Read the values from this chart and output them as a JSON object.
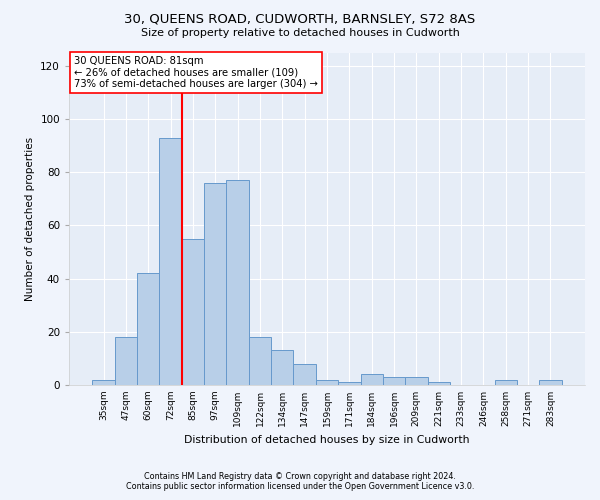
{
  "title": "30, QUEENS ROAD, CUDWORTH, BARNSLEY, S72 8AS",
  "subtitle": "Size of property relative to detached houses in Cudworth",
  "xlabel": "Distribution of detached houses by size in Cudworth",
  "ylabel": "Number of detached properties",
  "bar_color": "#b8cfe8",
  "bar_edge_color": "#6699cc",
  "background_color": "#f0f4fc",
  "plot_bg_color": "#e6edf7",
  "grid_color": "#ffffff",
  "categories": [
    "35sqm",
    "47sqm",
    "60sqm",
    "72sqm",
    "85sqm",
    "97sqm",
    "109sqm",
    "122sqm",
    "134sqm",
    "147sqm",
    "159sqm",
    "171sqm",
    "184sqm",
    "196sqm",
    "209sqm",
    "221sqm",
    "233sqm",
    "246sqm",
    "258sqm",
    "271sqm",
    "283sqm"
  ],
  "values": [
    2,
    18,
    42,
    93,
    55,
    76,
    77,
    18,
    13,
    8,
    2,
    1,
    4,
    3,
    3,
    1,
    0,
    0,
    2,
    0,
    2
  ],
  "marker_label": "30 QUEENS ROAD: 81sqm",
  "annotation_line1": "← 26% of detached houses are smaller (109)",
  "annotation_line2": "73% of semi-detached houses are larger (304) →",
  "ylim": [
    0,
    125
  ],
  "yticks": [
    0,
    20,
    40,
    60,
    80,
    100,
    120
  ],
  "marker_bar_index": 3,
  "footnote1": "Contains HM Land Registry data © Crown copyright and database right 2024.",
  "footnote2": "Contains public sector information licensed under the Open Government Licence v3.0."
}
